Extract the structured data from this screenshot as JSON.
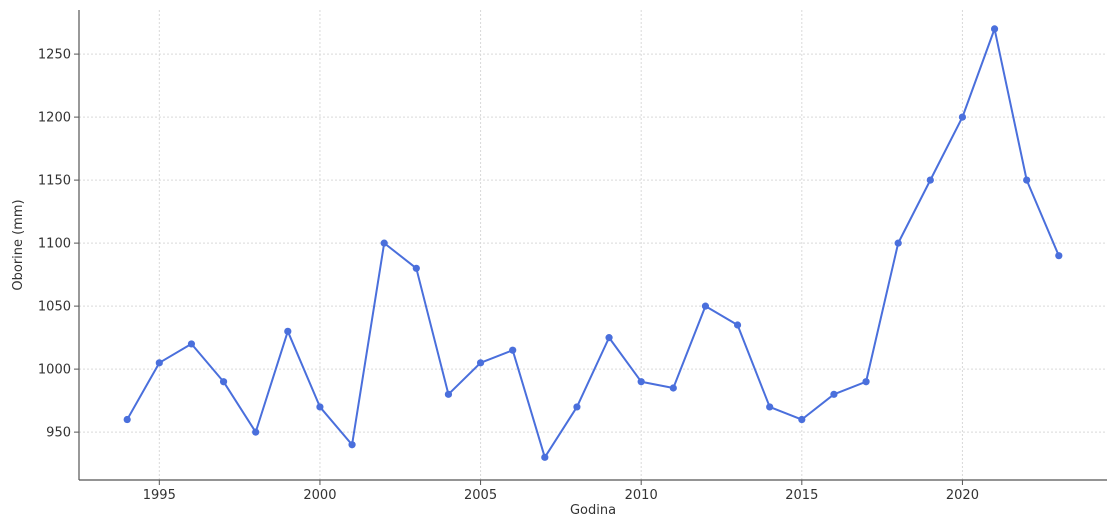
{
  "chart_data": {
    "type": "line",
    "title": "",
    "xlabel": "Godina",
    "ylabel": "Oborine (mm)",
    "xlim": [
      1992.5,
      2024.5
    ],
    "ylim": [
      912,
      1285
    ],
    "xticks": [
      1995,
      2000,
      2005,
      2010,
      2015,
      2020
    ],
    "yticks": [
      950,
      1000,
      1050,
      1100,
      1150,
      1200,
      1250
    ],
    "grid": true,
    "series": [
      {
        "color": "#4a6fdc",
        "marker": "circle",
        "points": [
          {
            "x": 1994,
            "y": 960
          },
          {
            "x": 1995,
            "y": 1005
          },
          {
            "x": 1996,
            "y": 1020
          },
          {
            "x": 1997,
            "y": 990
          },
          {
            "x": 1998,
            "y": 950
          },
          {
            "x": 1999,
            "y": 1030
          },
          {
            "x": 2000,
            "y": 970
          },
          {
            "x": 2001,
            "y": 940
          },
          {
            "x": 2002,
            "y": 1100
          },
          {
            "x": 2003,
            "y": 1080
          },
          {
            "x": 2004,
            "y": 980
          },
          {
            "x": 2005,
            "y": 1005
          },
          {
            "x": 2006,
            "y": 1015
          },
          {
            "x": 2007,
            "y": 930
          },
          {
            "x": 2008,
            "y": 970
          },
          {
            "x": 2009,
            "y": 1025
          },
          {
            "x": 2010,
            "y": 990
          },
          {
            "x": 2011,
            "y": 985
          },
          {
            "x": 2012,
            "y": 1050
          },
          {
            "x": 2013,
            "y": 1035
          },
          {
            "x": 2014,
            "y": 970
          },
          {
            "x": 2015,
            "y": 960
          },
          {
            "x": 2016,
            "y": 980
          },
          {
            "x": 2017,
            "y": 990
          },
          {
            "x": 2018,
            "y": 1100
          },
          {
            "x": 2019,
            "y": 1150
          },
          {
            "x": 2020,
            "y": 1200
          },
          {
            "x": 2021,
            "y": 1270
          },
          {
            "x": 2022,
            "y": 1150
          },
          {
            "x": 2023,
            "y": 1090
          }
        ]
      }
    ]
  }
}
